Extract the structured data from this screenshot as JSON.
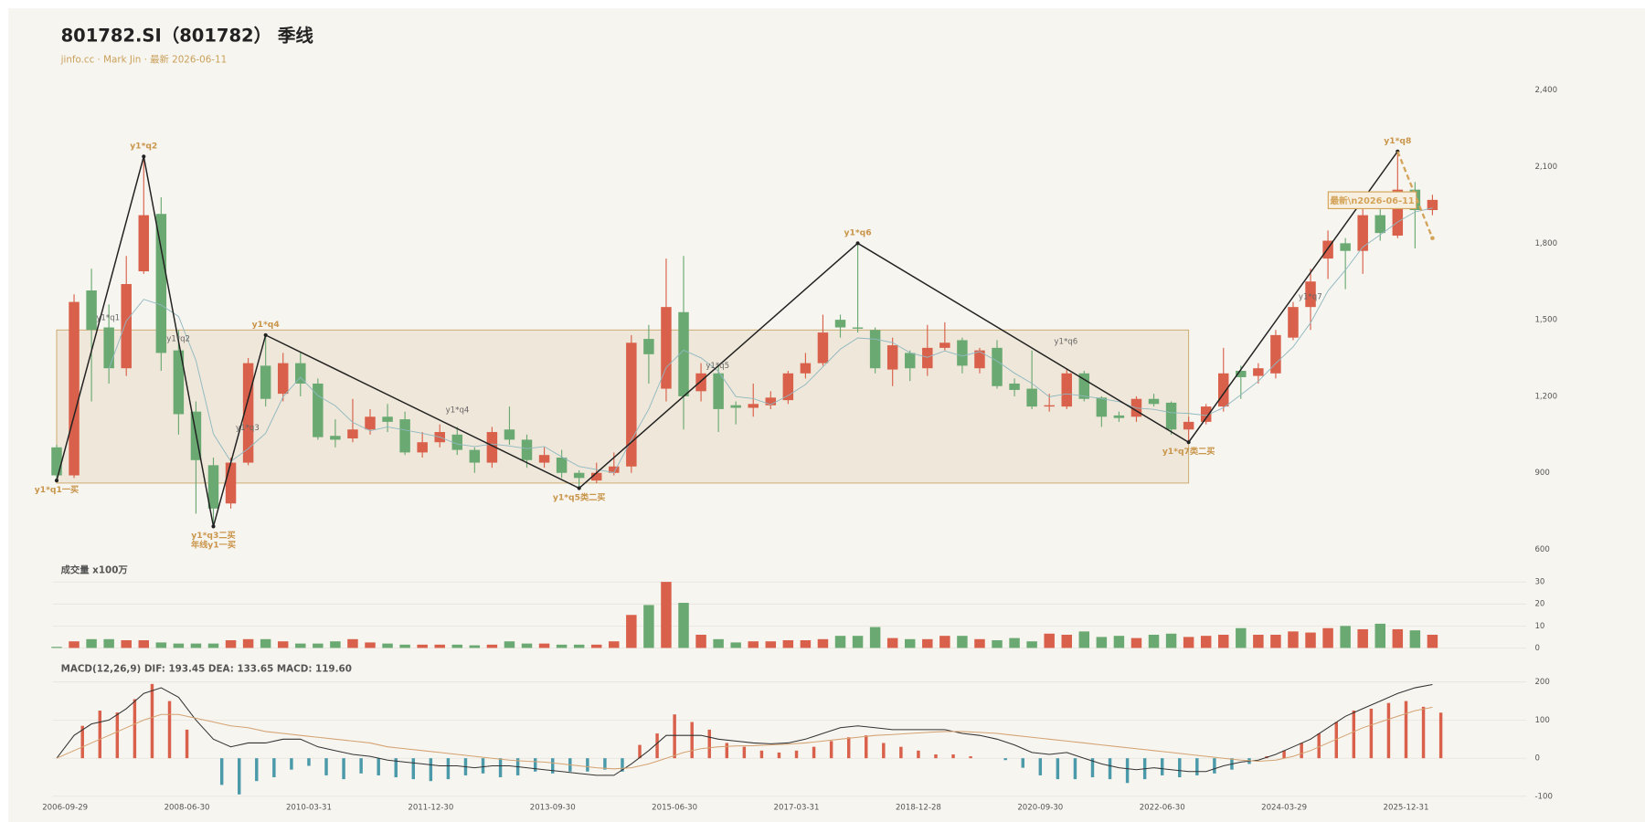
{
  "chart_data": [
    {
      "type": "candlestick",
      "title": "801782.SI（801782） 季线",
      "subtitle": "jinfo.cc · Mark Jin · 最新 2026-06-11",
      "categories": [
        "2006-09-29",
        null,
        null,
        null,
        null,
        null,
        null,
        "2008-06-30",
        null,
        null,
        null,
        null,
        null,
        null,
        "2010-03-31",
        null,
        null,
        null,
        null,
        null,
        null,
        "2011-12-30",
        null,
        null,
        null,
        null,
        null,
        null,
        "2013-09-30",
        null,
        null,
        null,
        null,
        null,
        null,
        "2015-06-30",
        null,
        null,
        null,
        null,
        null,
        null,
        "2017-03-31",
        null,
        null,
        null,
        null,
        null,
        null,
        "2018-12-28",
        null,
        null,
        null,
        null,
        null,
        null,
        "2020-09-30",
        null,
        null,
        null,
        null,
        null,
        null,
        "2022-06-30",
        null,
        null,
        null,
        null,
        null,
        null,
        "2024-03-29",
        null,
        null,
        null,
        null,
        null,
        null,
        "2025-12-31",
        null,
        null
      ],
      "open": [
        1000,
        890,
        1615,
        1470,
        1310,
        1690,
        1915,
        1380,
        1140,
        930,
        780,
        940,
        1320,
        1210,
        1330,
        1250,
        1045,
        1035,
        1070,
        1120,
        1110,
        980,
        1020,
        1050,
        990,
        940,
        1070,
        1030,
        940,
        960,
        900,
        870,
        900,
        925,
        1425,
        1230,
        1530,
        1220,
        1290,
        1165,
        1155,
        1165,
        1185,
        1290,
        1330,
        1500,
        1470,
        1460,
        1305,
        1370,
        1310,
        1390,
        1420,
        1310,
        1390,
        1250,
        1230,
        1160,
        1160,
        1290,
        1195,
        1125,
        1120,
        1190,
        1175,
        1070,
        1100,
        1160,
        1300,
        1280,
        1290,
        1430,
        1550,
        1740,
        1800,
        1770,
        1910,
        1830,
        2010,
        1930
      ],
      "high": [
        1010,
        1600,
        1700,
        1560,
        1750,
        2140,
        1980,
        1460,
        1180,
        960,
        960,
        1350,
        1440,
        1370,
        1370,
        1270,
        1110,
        1190,
        1150,
        1170,
        1140,
        1060,
        1090,
        1080,
        1000,
        1080,
        1160,
        1050,
        1000,
        990,
        910,
        940,
        980,
        1440,
        1480,
        1740,
        1750,
        1330,
        1320,
        1180,
        1250,
        1220,
        1300,
        1370,
        1520,
        1520,
        1800,
        1470,
        1430,
        1380,
        1480,
        1490,
        1430,
        1390,
        1420,
        1270,
        1380,
        1210,
        1310,
        1300,
        1200,
        1140,
        1200,
        1210,
        1180,
        1120,
        1170,
        1390,
        1320,
        1330,
        1460,
        1570,
        1700,
        1850,
        1820,
        1940,
        1960,
        2160,
        2040,
        1990
      ],
      "low": [
        870,
        880,
        1180,
        1250,
        1280,
        1680,
        1300,
        1050,
        740,
        690,
        760,
        930,
        1160,
        1180,
        1200,
        1030,
        1000,
        1020,
        1050,
        1060,
        970,
        960,
        1000,
        970,
        900,
        920,
        1010,
        920,
        920,
        880,
        840,
        860,
        890,
        900,
        1250,
        1180,
        1070,
        1180,
        1060,
        1090,
        1120,
        1150,
        1170,
        1270,
        1320,
        1430,
        1450,
        1290,
        1240,
        1260,
        1280,
        1380,
        1290,
        1290,
        1230,
        1200,
        1150,
        1140,
        1150,
        1180,
        1080,
        1100,
        1100,
        1160,
        1050,
        1020,
        1090,
        1140,
        1190,
        1250,
        1270,
        1420,
        1460,
        1660,
        1620,
        1680,
        1810,
        1820,
        1780,
        1910
      ],
      "close": [
        890,
        1570,
        1460,
        1310,
        1640,
        1910,
        1370,
        1130,
        950,
        760,
        940,
        1330,
        1190,
        1330,
        1250,
        1040,
        1030,
        1070,
        1120,
        1100,
        980,
        1020,
        1060,
        990,
        940,
        1060,
        1030,
        950,
        970,
        900,
        880,
        900,
        925,
        1410,
        1365,
        1550,
        1200,
        1290,
        1150,
        1155,
        1170,
        1195,
        1290,
        1330,
        1450,
        1470,
        1465,
        1310,
        1400,
        1310,
        1390,
        1410,
        1320,
        1380,
        1240,
        1225,
        1160,
        1165,
        1290,
        1190,
        1120,
        1115,
        1190,
        1170,
        1070,
        1100,
        1160,
        1290,
        1275,
        1310,
        1440,
        1550,
        1650,
        1810,
        1770,
        1910,
        1840,
        2010,
        1930,
        1970
      ],
      "up_color": "#d9604a",
      "down_color": "#6aaa72",
      "ma": {
        "color": "#8fb8c0",
        "values": [
          null,
          null,
          null,
          1308,
          1495,
          1580,
          1558,
          1513,
          1340,
          1053,
          945,
          995,
          1055,
          1198,
          1275,
          1203,
          1163,
          1098,
          1065,
          1080,
          1068,
          1055,
          1040,
          1013,
          1003,
          1013,
          1005,
          995,
          1003,
          963,
          925,
          913,
          901,
          1029,
          1150,
          1313,
          1381,
          1351,
          1298,
          1199,
          1191,
          1168,
          1203,
          1246,
          1316,
          1385,
          1429,
          1424,
          1411,
          1371,
          1353,
          1378,
          1358,
          1375,
          1338,
          1291,
          1251,
          1198,
          1210,
          1201,
          1191,
          1179,
          1154,
          1149,
          1136,
          1133,
          1125,
          1155,
          1206,
          1259,
          1329,
          1394,
          1488,
          1613,
          1695,
          1785,
          1833,
          1883,
          1923,
          1938
        ]
      },
      "zone": {
        "start": 0,
        "end": 65,
        "high": 1460,
        "low": 860,
        "color": "#c9a86a"
      },
      "pivots": [
        {
          "index": 0,
          "value": 870,
          "labels": [
            "y1*q1一买"
          ]
        },
        {
          "index": 5,
          "value": 2140,
          "labels": [
            "y1*q2"
          ]
        },
        {
          "index": 9,
          "value": 690,
          "labels": [
            "y1*q3二买",
            "年线y1一买"
          ]
        },
        {
          "index": 12,
          "value": 1440,
          "labels": [
            "y1*q4"
          ]
        },
        {
          "index": 30,
          "value": 840,
          "labels": [
            "y1*q5类二买"
          ]
        },
        {
          "index": 46,
          "value": 1800,
          "labels": [
            "y1*q6"
          ]
        },
        {
          "index": 65,
          "value": 1020,
          "labels": [
            "y1*q7类二买"
          ]
        },
        {
          "index": 77,
          "value": 2160,
          "labels": [
            "y1*q8"
          ]
        }
      ],
      "sub_labels": [
        "y1*q1",
        "y1*q2",
        "y1*q3",
        "y1*q4",
        "y1*q5",
        "y1*q6",
        "y1*q7"
      ],
      "latest": {
        "to_index": 79,
        "to": 1820,
        "label": "最新\\n2026-06-11",
        "color": "#d4a35a"
      },
      "ylim": [
        600,
        2400
      ],
      "yticks": [
        600,
        900,
        {
          "value": 1200,
          "label": "1,200"
        },
        {
          "value": 1500,
          "label": "1,500"
        },
        {
          "value": 1800,
          "label": "1,800"
        },
        {
          "value": 2100,
          "label": "2,100"
        },
        {
          "value": 2400,
          "label": "2,400"
        }
      ],
      "grid": false
    },
    {
      "type": "volume",
      "title": "成交量 x100万",
      "values": [
        0.5,
        3,
        4,
        4,
        3.5,
        3.5,
        2.5,
        2,
        2,
        2,
        3.5,
        4,
        4,
        3,
        2,
        2,
        3,
        4,
        2.5,
        2,
        1.5,
        1.5,
        1.5,
        1.5,
        1.2,
        1.5,
        3,
        2,
        2,
        1.5,
        1.5,
        1.5,
        3,
        15,
        19.5,
        30,
        20.5,
        6,
        4,
        2.5,
        3,
        3,
        3.5,
        3.5,
        4,
        5.5,
        5.5,
        9.5,
        4.5,
        4,
        4,
        5.5,
        5.5,
        4,
        3.5,
        4.5,
        3,
        6.5,
        6,
        7.5,
        5,
        5.5,
        4.5,
        6,
        6.5,
        5,
        5.5,
        6,
        9,
        6,
        6,
        7.5,
        7,
        9,
        10,
        8.5,
        11,
        8.5,
        8,
        6
      ],
      "ylim": [
        0,
        30
      ],
      "yticks": [
        0,
        10,
        20,
        30
      ],
      "grid": true
    },
    {
      "type": "macd",
      "title": "MACD(12,26,9) DIF: 193.45 DEA: 133.65 MACD: 119.60",
      "histogram": {
        "up_color": "#d9604a",
        "down_color": "#4a9aaa",
        "values": [
          0,
          85,
          125,
          120,
          155,
          195,
          150,
          75,
          0,
          -70,
          -95,
          -60,
          -50,
          -30,
          -20,
          -45,
          -55,
          -40,
          -45,
          -50,
          -55,
          -60,
          -55,
          -45,
          -40,
          -50,
          -45,
          -35,
          -40,
          -35,
          -35,
          -30,
          -35,
          35,
          65,
          115,
          95,
          75,
          40,
          30,
          20,
          15,
          20,
          30,
          45,
          55,
          60,
          40,
          30,
          20,
          10,
          10,
          5,
          0,
          -5,
          -25,
          -45,
          -55,
          -55,
          -50,
          -55,
          -65,
          -55,
          -45,
          -50,
          -45,
          -40,
          -30,
          -15,
          5,
          20,
          40,
          65,
          95,
          125,
          130,
          145,
          150,
          135,
          119.6
        ]
      },
      "series": [
        {
          "color": "#333333",
          "values": [
            0,
            60,
            90,
            100,
            130,
            170,
            185,
            160,
            100,
            50,
            30,
            40,
            40,
            50,
            50,
            30,
            20,
            10,
            5,
            -5,
            -10,
            -15,
            -20,
            -20,
            -25,
            -20,
            -20,
            -25,
            -30,
            -35,
            -40,
            -45,
            -45,
            -15,
            20,
            60,
            60,
            60,
            50,
            45,
            40,
            38,
            40,
            50,
            65,
            80,
            85,
            80,
            75,
            75,
            75,
            75,
            65,
            60,
            50,
            35,
            15,
            10,
            15,
            0,
            -15,
            -25,
            -30,
            -25,
            -30,
            -35,
            -35,
            -20,
            -10,
            -5,
            10,
            30,
            50,
            80,
            110,
            130,
            150,
            170,
            185,
            193.45
          ]
        },
        {
          "color": "#d4a373",
          "values": [
            0,
            20,
            40,
            60,
            80,
            100,
            115,
            115,
            105,
            95,
            85,
            80,
            70,
            65,
            60,
            55,
            50,
            45,
            40,
            30,
            25,
            20,
            15,
            10,
            5,
            0,
            -5,
            -8,
            -10,
            -15,
            -20,
            -25,
            -28,
            -25,
            -15,
            0,
            15,
            25,
            30,
            32,
            33,
            35,
            37,
            40,
            45,
            50,
            55,
            60,
            62,
            65,
            68,
            70,
            70,
            68,
            65,
            60,
            55,
            50,
            45,
            40,
            35,
            30,
            25,
            20,
            15,
            10,
            5,
            0,
            -5,
            -8,
            -5,
            5,
            20,
            40,
            60,
            80,
            95,
            110,
            125,
            133.65
          ]
        }
      ],
      "ylim": [
        -100,
        200
      ],
      "yticks": [
        -100,
        0,
        100,
        200
      ],
      "grid": true
    }
  ]
}
